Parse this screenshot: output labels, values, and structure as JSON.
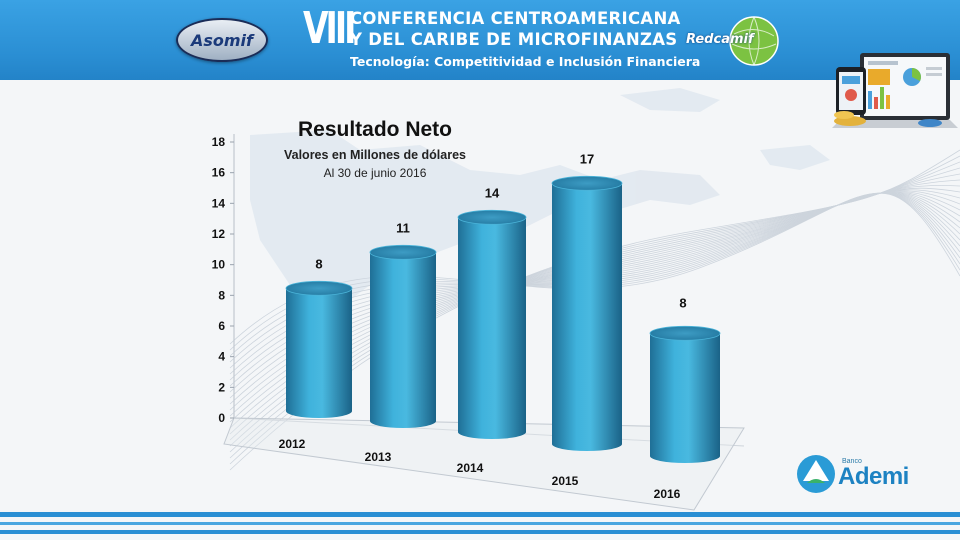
{
  "header": {
    "edition": "VIII",
    "title_line_1": "CONFERENCIA CENTROAMERICANA",
    "title_line_2": "Y DEL CARIBE DE MICROFINANZAS",
    "subtitle": "Tecnología: Competitividad e Inclusión Financiera",
    "logo_left": "Asomif",
    "logo_right": "Redcamif"
  },
  "bank_logo": {
    "small_text": "Banco",
    "name": "Ademi"
  },
  "colors": {
    "header_blue": "#2a8ed3",
    "bar_blue": "#3aa6cf",
    "bar_dark": "#1f6f96"
  },
  "chart_data": {
    "type": "bar",
    "title": "Resultado Neto",
    "subtitle": "Valores en Millones de dólares",
    "note": "Al 30 de junio 2016",
    "categories": [
      "2012",
      "2013",
      "2014",
      "2015",
      "2016"
    ],
    "values": [
      8,
      11,
      14,
      17,
      8
    ],
    "data_labels": [
      "8",
      "11",
      "14",
      "17",
      "8"
    ],
    "yticks": [
      "0",
      "2",
      "4",
      "6",
      "8",
      "10",
      "12",
      "14",
      "16",
      "18"
    ],
    "ylim": [
      0,
      18
    ],
    "style": "3d-cylinder",
    "grid": false,
    "legend": "none"
  }
}
